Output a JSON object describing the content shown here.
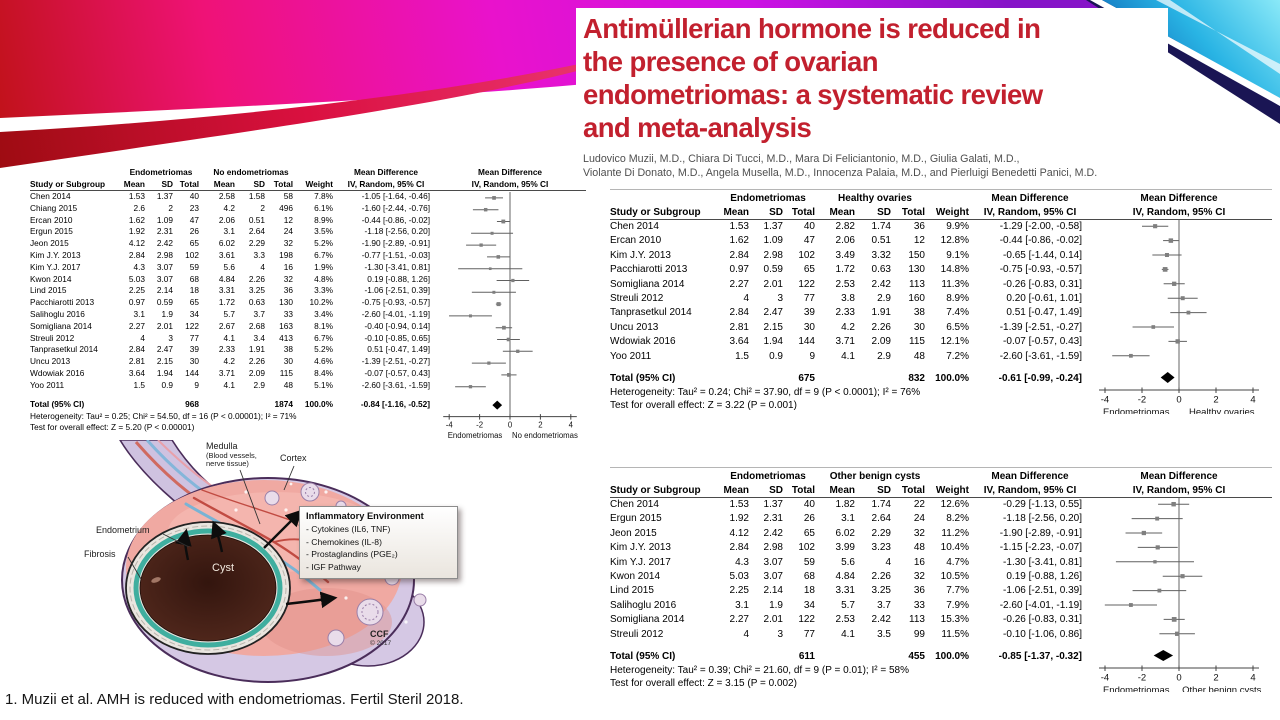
{
  "slide": {
    "title_lines": [
      "Antimüllerian hormone is reduced in",
      "the presence of ovarian",
      "endometriomas: a systematic review",
      "and meta-analysis"
    ],
    "authors": [
      "Ludovico Muzii, M.D., Chiara Di Tucci, M.D., Mara Di Feliciantonio, M.D., Giulia Galati, M.D.,",
      "Violante Di Donato, M.D., Angela Musella, M.D., Innocenza Palaia, M.D., and Pierluigi Benedetti Panici, M.D."
    ],
    "citation": "1. Muzii et al. AMH is reduced with endometriomas. Fertil Steril 2018.",
    "accent_color": "#c2202e"
  },
  "diagram": {
    "label_medulla": "Medulla",
    "label_medulla_sub1": "(Blood vessels,",
    "label_medulla_sub2": "nerve tissue)",
    "label_cortex": "Cortex",
    "label_endometrium": "Endometrium",
    "label_fibrosis": "Fibrosis",
    "label_cyst": "Cyst",
    "inflammatory_box": {
      "title": "Inflammatory Environment",
      "items": [
        "- Cytokines (IL6, TNF)",
        "- Chemokines (IL-8)",
        "- Prostaglandins (PGE₂)",
        "- IGF Pathway"
      ]
    },
    "credit": "CCF",
    "credit_year": "© 2017"
  },
  "chart_data": [
    {
      "type": "forest",
      "group1": "Endometriomas",
      "group2": "No endometriomas",
      "columns": [
        "Study or Subgroup",
        "Mean",
        "SD",
        "Total",
        "Mean",
        "SD",
        "Total",
        "Weight",
        "IV, Random, 95% CI"
      ],
      "md_header": "Mean Difference",
      "md_subheader": "IV, Random, 95% CI",
      "studies": [
        [
          "Chen 2014",
          "1.53",
          "1.37",
          "40",
          "2.58",
          "1.58",
          "58",
          "7.8%",
          "-1.05 [-1.64, -0.46]",
          -1.05,
          -1.64,
          -0.46
        ],
        [
          "Chiang 2015",
          "2.6",
          "2",
          "23",
          "4.2",
          "2",
          "496",
          "6.1%",
          "-1.60 [-2.44, -0.76]",
          -1.6,
          -2.44,
          -0.76
        ],
        [
          "Ercan 2010",
          "1.62",
          "1.09",
          "47",
          "2.06",
          "0.51",
          "12",
          "8.9%",
          "-0.44 [-0.86, -0.02]",
          -0.44,
          -0.86,
          -0.02
        ],
        [
          "Ergun 2015",
          "1.92",
          "2.31",
          "26",
          "3.1",
          "2.64",
          "24",
          "3.5%",
          "-1.18 [-2.56, 0.20]",
          -1.18,
          -2.56,
          0.2
        ],
        [
          "Jeon 2015",
          "4.12",
          "2.42",
          "65",
          "6.02",
          "2.29",
          "32",
          "5.2%",
          "-1.90 [-2.89, -0.91]",
          -1.9,
          -2.89,
          -0.91
        ],
        [
          "Kim J.Y. 2013",
          "2.84",
          "2.98",
          "102",
          "3.61",
          "3.3",
          "198",
          "6.7%",
          "-0.77 [-1.51, -0.03]",
          -0.77,
          -1.51,
          -0.03
        ],
        [
          "Kim Y.J. 2017",
          "4.3",
          "3.07",
          "59",
          "5.6",
          "4",
          "16",
          "1.9%",
          "-1.30 [-3.41, 0.81]",
          -1.3,
          -3.41,
          0.81
        ],
        [
          "Kwon 2014",
          "5.03",
          "3.07",
          "68",
          "4.84",
          "2.26",
          "32",
          "4.8%",
          "0.19 [-0.88, 1.26]",
          0.19,
          -0.88,
          1.26
        ],
        [
          "Lind 2015",
          "2.25",
          "2.14",
          "18",
          "3.31",
          "3.25",
          "36",
          "3.3%",
          "-1.06 [-2.51, 0.39]",
          -1.06,
          -2.51,
          0.39
        ],
        [
          "Pacchiarotti 2013",
          "0.97",
          "0.59",
          "65",
          "1.72",
          "0.63",
          "130",
          "10.2%",
          "-0.75 [-0.93, -0.57]",
          -0.75,
          -0.93,
          -0.57
        ],
        [
          "Salihoglu 2016",
          "3.1",
          "1.9",
          "34",
          "5.7",
          "3.7",
          "33",
          "3.4%",
          "-2.60 [-4.01, -1.19]",
          -2.6,
          -4.01,
          -1.19
        ],
        [
          "Somigliana 2014",
          "2.27",
          "2.01",
          "122",
          "2.67",
          "2.68",
          "163",
          "8.1%",
          "-0.40 [-0.94, 0.14]",
          -0.4,
          -0.94,
          0.14
        ],
        [
          "Streuli 2012",
          "4",
          "3",
          "77",
          "4.1",
          "3.4",
          "413",
          "6.7%",
          "-0.10 [-0.85, 0.65]",
          -0.1,
          -0.85,
          0.65
        ],
        [
          "Tanprasetkul 2014",
          "2.84",
          "2.47",
          "39",
          "2.33",
          "1.91",
          "38",
          "5.2%",
          "0.51 [-0.47, 1.49]",
          0.51,
          -0.47,
          1.49
        ],
        [
          "Uncu 2013",
          "2.81",
          "2.15",
          "30",
          "4.2",
          "2.26",
          "30",
          "4.6%",
          "-1.39 [-2.51, -0.27]",
          -1.39,
          -2.51,
          -0.27
        ],
        [
          "Wdowiak 2016",
          "3.64",
          "1.94",
          "144",
          "3.71",
          "2.09",
          "115",
          "8.4%",
          "-0.07 [-0.57, 0.43]",
          -0.07,
          -0.57,
          0.43
        ],
        [
          "Yoo 2011",
          "1.5",
          "0.9",
          "9",
          "4.1",
          "2.9",
          "48",
          "5.1%",
          "-2.60 [-3.61, -1.59]",
          -2.6,
          -3.61,
          -1.59
        ]
      ],
      "total": {
        "label": "Total (95% CI)",
        "n1": "968",
        "n2": "1874",
        "weight": "100.0%",
        "ci": "-0.84 [-1.16, -0.52]",
        "md": -0.84,
        "lo": -1.16,
        "hi": -0.52
      },
      "heterogeneity": "Heterogeneity: Tau² = 0.25; Chi² = 54.50, df = 16 (P < 0.00001); I² = 71%",
      "overall_effect": "Test for overall effect: Z = 5.20 (P < 0.00001)",
      "axis": {
        "ticks": [
          -4,
          -2,
          0,
          2,
          4
        ],
        "min": -4,
        "max": 4,
        "left_label": "Endometriomas",
        "right_label": "No  endometriomas"
      }
    },
    {
      "type": "forest",
      "group1": "Endometriomas",
      "group2": "Healthy ovaries",
      "columns": [
        "Study or Subgroup",
        "Mean",
        "SD",
        "Total",
        "Mean",
        "SD",
        "Total",
        "Weight",
        "IV, Random, 95% CI"
      ],
      "md_header": "Mean Difference",
      "md_subheader": "IV, Random, 95% CI",
      "studies": [
        [
          "Chen 2014",
          "1.53",
          "1.37",
          "40",
          "2.82",
          "1.74",
          "36",
          "9.9%",
          "-1.29 [-2.00, -0.58]",
          -1.29,
          -2.0,
          -0.58
        ],
        [
          "Ercan 2010",
          "1.62",
          "1.09",
          "47",
          "2.06",
          "0.51",
          "12",
          "12.8%",
          "-0.44 [-0.86, -0.02]",
          -0.44,
          -0.86,
          -0.02
        ],
        [
          "Kim J.Y. 2013",
          "2.84",
          "2.98",
          "102",
          "3.49",
          "3.32",
          "150",
          "9.1%",
          "-0.65 [-1.44, 0.14]",
          -0.65,
          -1.44,
          0.14
        ],
        [
          "Pacchiarotti 2013",
          "0.97",
          "0.59",
          "65",
          "1.72",
          "0.63",
          "130",
          "14.8%",
          "-0.75 [-0.93, -0.57]",
          -0.75,
          -0.93,
          -0.57
        ],
        [
          "Somigliana 2014",
          "2.27",
          "2.01",
          "122",
          "2.53",
          "2.42",
          "113",
          "11.3%",
          "-0.26 [-0.83, 0.31]",
          -0.26,
          -0.83,
          0.31
        ],
        [
          "Streuli 2012",
          "4",
          "3",
          "77",
          "3.8",
          "2.9",
          "160",
          "8.9%",
          "0.20 [-0.61, 1.01]",
          0.2,
          -0.61,
          1.01
        ],
        [
          "Tanprasetkul 2014",
          "2.84",
          "2.47",
          "39",
          "2.33",
          "1.91",
          "38",
          "7.4%",
          "0.51 [-0.47, 1.49]",
          0.51,
          -0.47,
          1.49
        ],
        [
          "Uncu 2013",
          "2.81",
          "2.15",
          "30",
          "4.2",
          "2.26",
          "30",
          "6.5%",
          "-1.39 [-2.51, -0.27]",
          -1.39,
          -2.51,
          -0.27
        ],
        [
          "Wdowiak 2016",
          "3.64",
          "1.94",
          "144",
          "3.71",
          "2.09",
          "115",
          "12.1%",
          "-0.07 [-0.57, 0.43]",
          -0.07,
          -0.57,
          0.43
        ],
        [
          "Yoo 2011",
          "1.5",
          "0.9",
          "9",
          "4.1",
          "2.9",
          "48",
          "7.2%",
          "-2.60 [-3.61, -1.59]",
          -2.6,
          -3.61,
          -1.59
        ]
      ],
      "total": {
        "label": "Total (95% CI)",
        "n1": "675",
        "n2": "832",
        "weight": "100.0%",
        "ci": "-0.61 [-0.99, -0.24]",
        "md": -0.61,
        "lo": -0.99,
        "hi": -0.24
      },
      "heterogeneity": "Heterogeneity: Tau² = 0.24; Chi² = 37.90, df = 9 (P < 0.0001); I² = 76%",
      "overall_effect": "Test for overall effect: Z = 3.22 (P = 0.001)",
      "axis": {
        "ticks": [
          -4,
          -2,
          0,
          2,
          4
        ],
        "min": -4,
        "max": 4,
        "left_label": "Endometriomas",
        "right_label": "Healthy ovaries"
      }
    },
    {
      "type": "forest",
      "group1": "Endometriomas",
      "group2": "Other benign cysts",
      "columns": [
        "Study or Subgroup",
        "Mean",
        "SD",
        "Total",
        "Mean",
        "SD",
        "Total",
        "Weight",
        "IV, Random, 95% CI"
      ],
      "md_header": "Mean Difference",
      "md_subheader": "IV, Random, 95% CI",
      "studies": [
        [
          "Chen 2014",
          "1.53",
          "1.37",
          "40",
          "1.82",
          "1.74",
          "22",
          "12.6%",
          "-0.29 [-1.13, 0.55]",
          -0.29,
          -1.13,
          0.55
        ],
        [
          "Ergun 2015",
          "1.92",
          "2.31",
          "26",
          "3.1",
          "2.64",
          "24",
          "8.2%",
          "-1.18 [-2.56, 0.20]",
          -1.18,
          -2.56,
          0.2
        ],
        [
          "Jeon 2015",
          "4.12",
          "2.42",
          "65",
          "6.02",
          "2.29",
          "32",
          "11.2%",
          "-1.90 [-2.89, -0.91]",
          -1.9,
          -2.89,
          -0.91
        ],
        [
          "Kim J.Y. 2013",
          "2.84",
          "2.98",
          "102",
          "3.99",
          "3.23",
          "48",
          "10.4%",
          "-1.15 [-2.23, -0.07]",
          -1.15,
          -2.23,
          -0.07
        ],
        [
          "Kim Y.J. 2017",
          "4.3",
          "3.07",
          "59",
          "5.6",
          "4",
          "16",
          "4.7%",
          "-1.30 [-3.41, 0.81]",
          -1.3,
          -3.41,
          0.81
        ],
        [
          "Kwon 2014",
          "5.03",
          "3.07",
          "68",
          "4.84",
          "2.26",
          "32",
          "10.5%",
          "0.19 [-0.88, 1.26]",
          0.19,
          -0.88,
          1.26
        ],
        [
          "Lind 2015",
          "2.25",
          "2.14",
          "18",
          "3.31",
          "3.25",
          "36",
          "7.7%",
          "-1.06 [-2.51, 0.39]",
          -1.06,
          -2.51,
          0.39
        ],
        [
          "Salihoglu 2016",
          "3.1",
          "1.9",
          "34",
          "5.7",
          "3.7",
          "33",
          "7.9%",
          "-2.60 [-4.01, -1.19]",
          -2.6,
          -4.01,
          -1.19
        ],
        [
          "Somigliana 2014",
          "2.27",
          "2.01",
          "122",
          "2.53",
          "2.42",
          "113",
          "15.3%",
          "-0.26 [-0.83, 0.31]",
          -0.26,
          -0.83,
          0.31
        ],
        [
          "Streuli 2012",
          "4",
          "3",
          "77",
          "4.1",
          "3.5",
          "99",
          "11.5%",
          "-0.10 [-1.06, 0.86]",
          -0.1,
          -1.06,
          0.86
        ]
      ],
      "total": {
        "label": "Total (95% CI)",
        "n1": "611",
        "n2": "455",
        "weight": "100.0%",
        "ci": "-0.85 [-1.37, -0.32]",
        "md": -0.85,
        "lo": -1.37,
        "hi": -0.32
      },
      "heterogeneity": "Heterogeneity: Tau² = 0.39; Chi² = 21.60, df = 9 (P = 0.01); I² = 58%",
      "overall_effect": "Test for overall effect: Z = 3.15 (P = 0.002)",
      "axis": {
        "ticks": [
          -4,
          -2,
          0,
          2,
          4
        ],
        "min": -4,
        "max": 4,
        "left_label": "Endometriomas",
        "right_label": "Other benign cysts"
      }
    }
  ]
}
